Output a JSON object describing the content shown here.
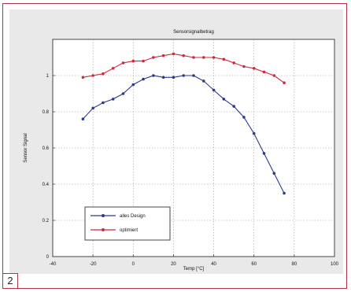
{
  "figure_number": "2",
  "chart_data": {
    "type": "line",
    "title": "Sensorsignalbetrag",
    "xlabel": "Temp [°C]",
    "ylabel": "Sensor Signal",
    "xlim": [
      -40,
      100
    ],
    "ylim": [
      0,
      1.2
    ],
    "xticks": [
      -40,
      -20,
      0,
      20,
      40,
      60,
      80,
      100
    ],
    "xtick_labels": [
      "-40",
      "-20",
      "0",
      "20",
      "40",
      "60",
      "80",
      "100"
    ],
    "yticks": [
      0,
      0.2,
      0.4,
      0.6,
      0.8,
      1
    ],
    "ytick_labels": [
      "0",
      "0.2",
      "0.4",
      "0.6",
      "0.8",
      "1"
    ],
    "grid": true,
    "legend_position": "lower-left",
    "x": [
      -25,
      -20,
      -15,
      -10,
      -5,
      0,
      5,
      10,
      15,
      20,
      25,
      30,
      35,
      40,
      45,
      50,
      55,
      60,
      65,
      70,
      75
    ],
    "series": [
      {
        "name": "alles Design",
        "color": "#2b3a8f",
        "marker": "dot",
        "values": [
          0.76,
          0.82,
          0.85,
          0.87,
          0.9,
          0.95,
          0.98,
          1.0,
          0.99,
          0.99,
          1.0,
          1.0,
          0.97,
          0.92,
          0.87,
          0.83,
          0.77,
          0.68,
          0.57,
          0.46,
          0.35
        ]
      },
      {
        "name": "optimiert",
        "color": "#cc2b3b",
        "marker": "dot",
        "values": [
          0.99,
          1.0,
          1.01,
          1.04,
          1.07,
          1.08,
          1.08,
          1.1,
          1.11,
          1.12,
          1.11,
          1.1,
          1.1,
          1.1,
          1.09,
          1.07,
          1.05,
          1.04,
          1.02,
          1.0,
          0.96
        ]
      }
    ]
  }
}
